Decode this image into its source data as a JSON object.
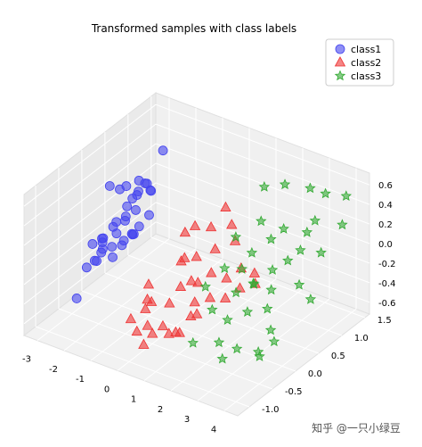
{
  "chart_data": {
    "type": "scatter",
    "projection": "3d",
    "title": "Transformed samples with class labels",
    "xlim": [
      -3.5,
      4.5
    ],
    "ylim": [
      -1.25,
      1.6
    ],
    "zlim": [
      -0.72,
      0.72
    ],
    "xticks": [
      "-3",
      "-2",
      "-1",
      "0",
      "1",
      "2",
      "3",
      "4"
    ],
    "yticks": [
      "-1.0",
      "-0.5",
      "0.0",
      "0.5",
      "1.0",
      "1.5"
    ],
    "zticks": [
      "-0.6",
      "-0.4",
      "-0.2",
      "0.0",
      "0.2",
      "0.4",
      "0.6"
    ],
    "grid": true,
    "legend_position": "top-right",
    "series": [
      {
        "name": "class1",
        "marker": "circle",
        "color": "#4444ee",
        "points": [
          [
            -1.5,
            0.6,
            0.7
          ],
          [
            -2.6,
            0.3,
            0.3
          ],
          [
            -2.9,
            0.4,
            -0.1
          ],
          [
            -2.5,
            0.1,
            0.0
          ],
          [
            -2.2,
            0.2,
            0.1
          ],
          [
            -2.3,
            0.4,
            0.2
          ],
          [
            -2.0,
            0.3,
            0.15
          ],
          [
            -2.1,
            0.1,
            -0.1
          ],
          [
            -2.7,
            0.0,
            -0.1
          ],
          [
            -2.4,
            -0.2,
            0.0
          ],
          [
            -2.0,
            0.5,
            0.35
          ],
          [
            -1.8,
            0.5,
            0.3
          ],
          [
            -1.6,
            0.4,
            0.35
          ],
          [
            -1.9,
            0.3,
            0.35
          ],
          [
            -2.8,
            0.2,
            0.35
          ],
          [
            -3.1,
            0.0,
            -0.2
          ],
          [
            -2.5,
            0.4,
            0.1
          ],
          [
            -2.2,
            0.0,
            0.0
          ],
          [
            -2.6,
            -0.1,
            -0.2
          ],
          [
            -2.4,
            0.3,
            0.0
          ],
          [
            -2.0,
            0.0,
            -0.1
          ],
          [
            -1.8,
            0.1,
            0.0
          ],
          [
            -2.3,
            0.5,
            0.2
          ],
          [
            -2.1,
            0.6,
            0.3
          ],
          [
            -1.7,
            0.2,
            0.05
          ],
          [
            -1.5,
            0.3,
            0.15
          ],
          [
            -2.9,
            0.1,
            -0.2
          ],
          [
            -2.6,
            -0.2,
            -0.25
          ],
          [
            -2.5,
            -0.3,
            -0.2
          ],
          [
            -2.2,
            -0.1,
            -0.1
          ],
          [
            -2.0,
            -0.2,
            -0.15
          ],
          [
            -1.9,
            0.2,
            -0.05
          ],
          [
            -2.7,
            0.5,
            0.25
          ],
          [
            -2.4,
            0.6,
            0.3
          ],
          [
            -2.2,
            -0.3,
            -0.05
          ],
          [
            -1.6,
            0.0,
            0.05
          ],
          [
            -3.0,
            -0.4,
            -0.6
          ],
          [
            -2.8,
            -0.3,
            -0.3
          ]
        ]
      },
      {
        "name": "class2",
        "marker": "triangle",
        "color": "#ee3333",
        "points": [
          [
            -0.5,
            0.5,
            0.0
          ],
          [
            0.5,
            0.8,
            0.25
          ],
          [
            0.3,
            0.6,
            0.1
          ],
          [
            -0.3,
            0.3,
            -0.2
          ],
          [
            0.0,
            0.2,
            -0.1
          ],
          [
            0.8,
            0.4,
            0.0
          ],
          [
            1.2,
            0.6,
            0.05
          ],
          [
            0.5,
            0.2,
            -0.3
          ],
          [
            -1.0,
            0.0,
            -0.4
          ],
          [
            -0.7,
            -0.2,
            -0.45
          ],
          [
            0.2,
            0.0,
            -0.3
          ],
          [
            0.6,
            0.0,
            -0.2
          ],
          [
            1.0,
            0.2,
            -0.15
          ],
          [
            1.4,
            0.3,
            -0.2
          ],
          [
            1.6,
            0.5,
            -0.15
          ],
          [
            0.3,
            -0.3,
            -0.35
          ],
          [
            0.9,
            -0.1,
            -0.35
          ],
          [
            1.3,
            0.0,
            -0.3
          ],
          [
            -0.2,
            -0.4,
            -0.35
          ],
          [
            0.4,
            -0.5,
            -0.5
          ],
          [
            0.8,
            -0.6,
            -0.5
          ],
          [
            1.1,
            -0.3,
            -0.4
          ],
          [
            1.9,
            0.3,
            -0.25
          ],
          [
            2.1,
            0.5,
            -0.15
          ],
          [
            -0.8,
            -0.5,
            -0.55
          ],
          [
            -0.4,
            -0.6,
            -0.6
          ],
          [
            0.0,
            -0.6,
            -0.5
          ],
          [
            0.7,
            -0.9,
            -0.4
          ],
          [
            1.5,
            -0.4,
            -0.3
          ],
          [
            0.2,
            -0.8,
            -0.6
          ],
          [
            1.2,
            -0.6,
            -0.45
          ],
          [
            -0.3,
            0.6,
            0.05
          ],
          [
            0.9,
            0.7,
            0.15
          ],
          [
            0.1,
            0.4,
            -0.15
          ],
          [
            1.7,
            0.1,
            -0.3
          ],
          [
            -0.6,
            -0.3,
            -0.5
          ],
          [
            2.3,
            0.4,
            -0.2
          ],
          [
            1.4,
            -0.8,
            -0.35
          ]
        ]
      },
      {
        "name": "class3",
        "marker": "star",
        "color": "#33aa33",
        "points": [
          [
            2.8,
            1.3,
            0.5
          ],
          [
            3.2,
            1.4,
            0.45
          ],
          [
            3.8,
            1.5,
            0.45
          ],
          [
            4.0,
            1.3,
            0.25
          ],
          [
            3.5,
            1.0,
            0.35
          ],
          [
            2.5,
            0.9,
            0.2
          ],
          [
            2.2,
            0.8,
            0.1
          ],
          [
            2.0,
            0.5,
            0.05
          ],
          [
            3.0,
            0.7,
            0.0
          ],
          [
            2.6,
            0.6,
            -0.1
          ],
          [
            1.8,
            0.4,
            -0.1
          ],
          [
            2.4,
            0.3,
            -0.15
          ],
          [
            3.3,
            0.8,
            0.1
          ],
          [
            2.9,
            0.4,
            -0.2
          ],
          [
            3.6,
            0.6,
            -0.15
          ],
          [
            2.1,
            0.1,
            -0.2
          ],
          [
            1.5,
            0.2,
            -0.05
          ],
          [
            2.7,
            0.0,
            -0.3
          ],
          [
            3.1,
            0.2,
            -0.3
          ],
          [
            3.4,
            0.1,
            -0.45
          ],
          [
            2.3,
            -0.2,
            -0.35
          ],
          [
            1.9,
            -0.3,
            -0.25
          ],
          [
            2.5,
            -0.5,
            -0.45
          ],
          [
            3.0,
            -0.4,
            -0.5
          ],
          [
            3.7,
            0.0,
            -0.5
          ],
          [
            1.4,
            0.5,
            0.15
          ],
          [
            3.9,
            0.9,
            0.1
          ],
          [
            1.6,
            1.0,
            0.5
          ],
          [
            2.2,
            1.1,
            0.55
          ],
          [
            3.5,
            -0.2,
            -0.6
          ],
          [
            2.8,
            -0.6,
            -0.55
          ],
          [
            4.2,
            0.5,
            -0.2
          ],
          [
            1.3,
            -0.1,
            -0.15
          ],
          [
            3.2,
            1.0,
            0.2
          ],
          [
            2.6,
            0.2,
            -0.1
          ],
          [
            2.0,
            0.7,
            0.3
          ],
          [
            3.8,
            -0.4,
            -0.45
          ],
          [
            1.7,
            -0.6,
            -0.5
          ]
        ]
      }
    ]
  },
  "watermark": "知乎 @一只小绿豆"
}
